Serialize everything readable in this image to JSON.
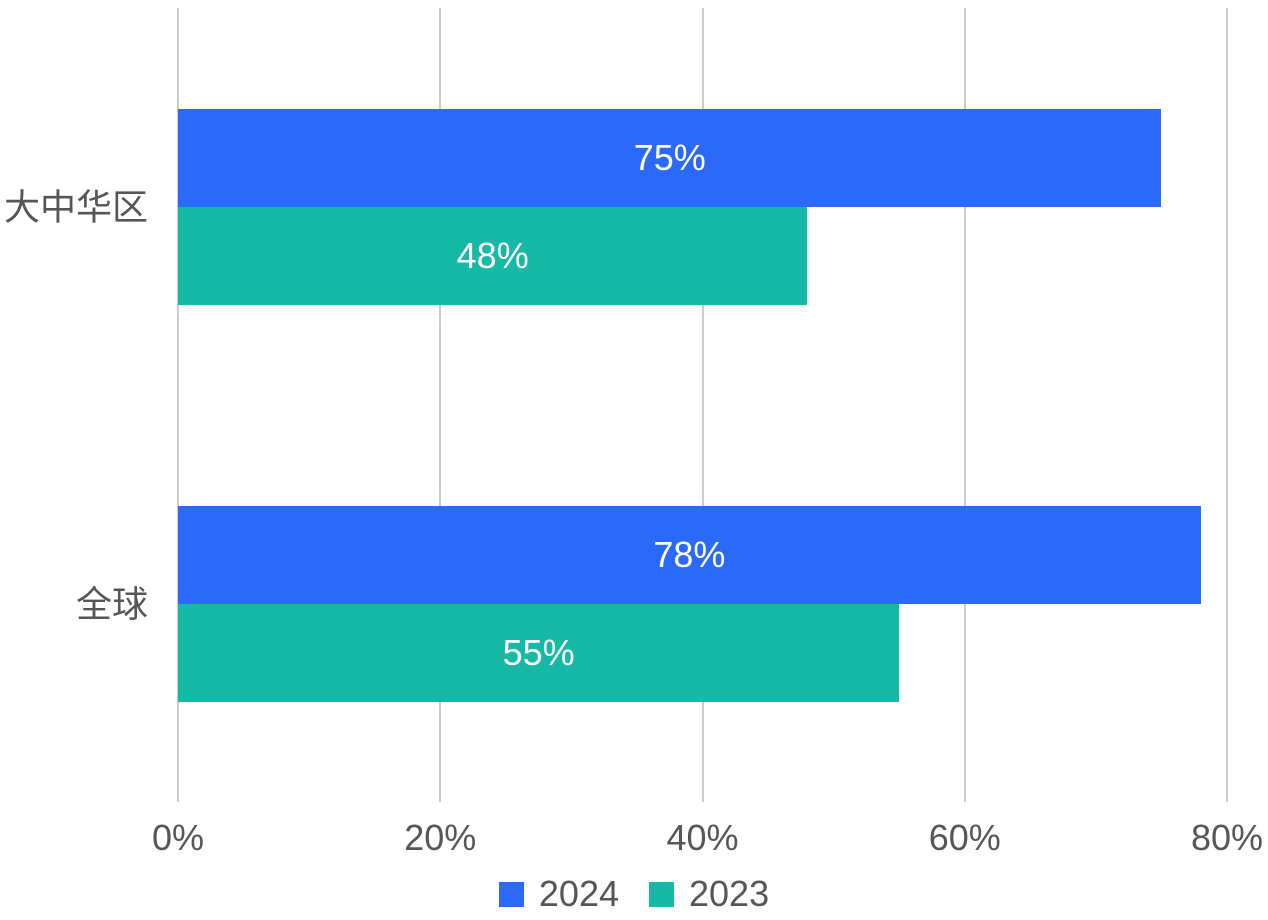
{
  "chart_data": {
    "type": "bar",
    "orientation": "horizontal",
    "title": "",
    "xlabel": "",
    "ylabel": "",
    "categories": [
      "大中华区",
      "全球"
    ],
    "series": [
      {
        "name": "2024",
        "color": "#2B6AF8",
        "values": [
          75,
          78
        ]
      },
      {
        "name": "2023",
        "color": "#16B8A6",
        "values": [
          48,
          55
        ]
      }
    ],
    "value_suffix": "%",
    "bar_labels": [
      [
        "75%",
        "78%"
      ],
      [
        "48%",
        "55%"
      ]
    ],
    "axis": {
      "min": 0,
      "max": 80,
      "ticks": [
        0,
        20,
        40,
        60,
        80
      ],
      "tick_labels": [
        "0%",
        "20%",
        "40%",
        "60%",
        "80%"
      ]
    },
    "grid": true,
    "legend_position": "bottom",
    "colors": {
      "background": "#FFFFFF",
      "gridline": "#CCCCCC",
      "axis_text": "#56565A",
      "bar_label_text": "#FFFFFF"
    }
  }
}
